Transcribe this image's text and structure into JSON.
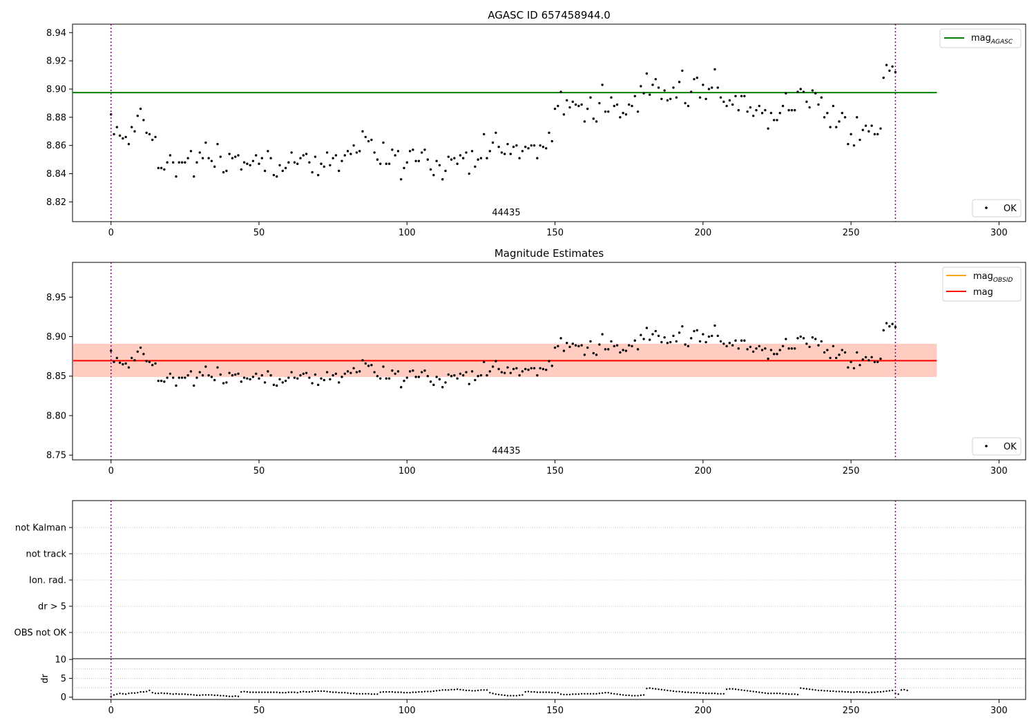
{
  "colors": {
    "agasc_line": "#008000",
    "obsid_line": "#ffa500",
    "mag_line": "#ff0000",
    "band_pink": "#ffc0cb",
    "band_orange": "#ffa07a",
    "obs_marker": "#800080",
    "points": "#000000",
    "grid": "#b0b0b0"
  },
  "chart_data": [
    {
      "type": "scatter",
      "title": "AGASC ID 657458944.0",
      "xlim": [
        -13,
        309
      ],
      "ylim": [
        8.806,
        8.946
      ],
      "xticks": [
        0,
        50,
        100,
        150,
        200,
        250,
        300
      ],
      "yticks": [
        8.82,
        8.84,
        8.86,
        8.88,
        8.9,
        8.92,
        8.94
      ],
      "legend": [
        {
          "label": "mag",
          "sub": "AGASC",
          "kind": "line",
          "position": "top-right"
        },
        {
          "label": "OK",
          "kind": "marker",
          "position": "bottom-right"
        }
      ],
      "reference_line": {
        "name": "mag",
        "sub": "AGASC",
        "y": 8.8975,
        "x": [
          -13,
          279
        ]
      },
      "obs_boundaries": [
        0,
        265
      ],
      "obs_label": {
        "text": "44435",
        "x": 132
      },
      "series": [
        {
          "name": "OK",
          "source": "magnitudes"
        }
      ]
    },
    {
      "type": "scatter",
      "title": "Magnitude Estimates",
      "xlim": [
        -13,
        309
      ],
      "ylim": [
        8.744,
        8.994
      ],
      "xticks": [
        0,
        50,
        100,
        150,
        200,
        250,
        300
      ],
      "yticks": [
        8.75,
        8.8,
        8.85,
        8.9,
        8.95
      ],
      "legend": [
        {
          "label": "mag",
          "sub": "OBSID",
          "kind": "line",
          "position": "top-right"
        },
        {
          "label": "mag",
          "kind": "line",
          "position": "top-right"
        },
        {
          "label": "OK",
          "kind": "marker",
          "position": "bottom-right"
        }
      ],
      "mag": 8.8695,
      "mag_band": [
        8.849,
        8.891
      ],
      "mag_obsid": 8.8695,
      "obsid_band": [
        8.849,
        8.891
      ],
      "band_x": [
        -13,
        279
      ],
      "obs_boundaries": [
        0,
        265
      ],
      "obs_label": {
        "text": "44435",
        "x": 132
      },
      "series": [
        {
          "name": "OK",
          "source": "magnitudes"
        }
      ]
    },
    {
      "type": "scatter",
      "categories": [
        "OBS not OK",
        "dr > 5",
        "Ion. rad.",
        "not track",
        "not Kalman"
      ],
      "xlim": [
        -13,
        309
      ],
      "flags": [],
      "obs_boundaries": [
        0,
        265
      ]
    },
    {
      "type": "scatter",
      "ylabel": "dr",
      "xlim": [
        -13,
        309
      ],
      "ylim": [
        -0.6,
        10.2
      ],
      "xticks": [
        0,
        50,
        100,
        150,
        200,
        250,
        300
      ],
      "yticks": [
        0,
        5,
        10
      ],
      "obs_boundaries": [
        0,
        265
      ],
      "series": [
        {
          "name": "dr",
          "values": [
            0.2,
            0.6,
            0.8,
            1.0,
            0.9,
            0.8,
            1.0,
            1.1,
            1.1,
            1.2,
            1.4,
            1.4,
            1.5,
            1.8,
            1.2,
            1.0,
            1.0,
            1.1,
            1.0,
            1.0,
            0.9,
            0.8,
            0.9,
            0.8,
            0.8,
            0.8,
            0.7,
            0.7,
            0.6,
            0.5,
            0.5,
            0.6,
            0.6,
            0.6,
            0.6,
            0.5,
            0.5,
            0.4,
            0.4,
            0.3,
            0.2,
            0.2,
            0.3,
            0.2,
            1.4,
            1.5,
            1.4,
            1.3,
            1.3,
            1.3,
            1.3,
            1.3,
            1.3,
            1.3,
            1.3,
            1.3,
            1.3,
            1.2,
            1.2,
            1.2,
            1.3,
            1.3,
            1.3,
            1.2,
            1.4,
            1.5,
            1.4,
            1.4,
            1.5,
            1.6,
            1.6,
            1.6,
            1.6,
            1.5,
            1.4,
            1.3,
            1.3,
            1.2,
            1.2,
            1.2,
            1.1,
            1.0,
            1.0,
            0.9,
            0.9,
            0.9,
            0.9,
            0.9,
            0.8,
            0.8,
            0.8,
            1.3,
            1.4,
            1.4,
            1.4,
            1.4,
            1.3,
            1.3,
            1.3,
            1.2,
            1.2,
            1.2,
            1.3,
            1.3,
            1.4,
            1.4,
            1.5,
            1.5,
            1.5,
            1.6,
            1.7,
            1.8,
            1.9,
            1.9,
            1.9,
            2.0,
            2.0,
            2.1,
            2.0,
            1.9,
            1.8,
            1.8,
            1.7,
            1.7,
            1.8,
            1.9,
            1.9,
            1.9,
            1.2,
            1.0,
            0.8,
            0.7,
            0.6,
            0.5,
            0.4,
            0.4,
            0.4,
            0.4,
            0.5,
            0.6,
            1.4,
            1.5,
            1.4,
            1.4,
            1.3,
            1.3,
            1.3,
            1.3,
            1.3,
            1.2,
            1.2,
            1.2,
            0.8,
            0.7,
            0.7,
            0.7,
            0.8,
            0.8,
            0.8,
            0.9,
            0.9,
            0.9,
            0.9,
            0.9,
            0.9,
            1.0,
            1.1,
            1.2,
            1.2,
            1.0,
            0.9,
            0.8,
            0.7,
            0.6,
            0.5,
            0.5,
            0.4,
            0.4,
            0.4,
            0.5,
            0.6,
            2.3,
            2.4,
            2.3,
            2.2,
            2.1,
            2.0,
            1.9,
            1.8,
            1.7,
            1.6,
            1.5,
            1.5,
            1.4,
            1.3,
            1.3,
            1.2,
            1.2,
            1.2,
            1.1,
            1.1,
            1.0,
            1.0,
            1.0,
            1.0,
            0.9,
            0.9,
            0.9,
            2.1,
            2.2,
            2.2,
            2.1,
            2.0,
            1.9,
            1.8,
            1.7,
            1.6,
            1.5,
            1.4,
            1.3,
            1.2,
            1.1,
            1.0,
            1.0,
            1.0,
            1.0,
            1.0,
            0.9,
            0.9,
            0.8,
            0.8,
            0.8,
            0.7,
            2.4,
            2.3,
            2.2,
            2.1,
            2.0,
            1.9,
            1.8,
            1.8,
            1.7,
            1.7,
            1.6,
            1.6,
            1.5,
            1.5,
            1.5,
            1.4,
            1.4,
            1.3,
            1.3,
            1.4,
            1.4,
            1.3,
            1.3,
            1.2,
            1.3,
            1.3,
            1.4,
            1.4,
            1.5,
            1.6,
            1.7,
            1.8,
            1.0,
            0.8,
            1.9,
            2.0,
            1.8
          ]
        }
      ]
    }
  ],
  "magnitudes": [
    8.882,
    8.868,
    8.873,
    8.867,
    8.865,
    8.866,
    8.861,
    8.873,
    8.87,
    8.881,
    8.886,
    8.878,
    8.869,
    8.868,
    8.864,
    8.866,
    8.844,
    8.844,
    8.843,
    8.848,
    8.853,
    8.848,
    8.838,
    8.848,
    8.848,
    8.848,
    8.851,
    8.856,
    8.838,
    8.848,
    8.855,
    8.851,
    8.862,
    8.851,
    8.849,
    8.845,
    8.861,
    8.852,
    8.841,
    8.842,
    8.854,
    8.851,
    8.852,
    8.853,
    8.843,
    8.848,
    8.847,
    8.846,
    8.849,
    8.853,
    8.847,
    8.851,
    8.842,
    8.856,
    8.851,
    8.839,
    8.838,
    8.846,
    8.842,
    8.844,
    8.848,
    8.855,
    8.848,
    8.847,
    8.851,
    8.853,
    8.854,
    8.848,
    8.841,
    8.852,
    8.839,
    8.847,
    8.845,
    8.855,
    8.846,
    8.851,
    8.853,
    8.842,
    8.849,
    8.853,
    8.856,
    8.854,
    8.86,
    8.855,
    8.856,
    8.87,
    8.866,
    8.863,
    8.864,
    8.855,
    8.85,
    8.847,
    8.862,
    8.847,
    8.847,
    8.857,
    8.853,
    8.856,
    8.836,
    8.844,
    8.848,
    8.856,
    8.857,
    8.849,
    8.849,
    8.855,
    8.857,
    8.85,
    8.843,
    8.839,
    8.849,
    8.846,
    8.836,
    8.842,
    8.852,
    8.85,
    8.851,
    8.847,
    8.853,
    8.851,
    8.855,
    8.84,
    8.856,
    8.845,
    8.85,
    8.851,
    8.868,
    8.851,
    8.856,
    8.862,
    8.869,
    8.859,
    8.855,
    8.854,
    8.861,
    8.854,
    8.859,
    8.86,
    8.851,
    8.856,
    8.859,
    8.858,
    8.86,
    8.86,
    8.851,
    8.86,
    8.859,
    8.858,
    8.869,
    8.863,
    8.886,
    8.888,
    8.898,
    8.882,
    8.892,
    8.887,
    8.891,
    8.889,
    8.888,
    8.889,
    8.877,
    8.886,
    8.894,
    8.879,
    8.877,
    8.89,
    8.903,
    8.884,
    8.884,
    8.894,
    8.888,
    8.889,
    8.88,
    8.883,
    8.882,
    8.889,
    8.888,
    8.895,
    8.884,
    8.902,
    8.897,
    8.911,
    8.896,
    8.903,
    8.907,
    8.901,
    8.893,
    8.899,
    8.892,
    8.893,
    8.901,
    8.894,
    8.905,
    8.913,
    8.89,
    8.888,
    8.898,
    8.907,
    8.908,
    8.894,
    8.903,
    8.893,
    8.9,
    8.901,
    8.914,
    8.901,
    8.894,
    8.891,
    8.888,
    8.892,
    8.889,
    8.895,
    8.885,
    8.895,
    8.895,
    8.884,
    8.887,
    8.881,
    8.885,
    8.888,
    8.883,
    8.885,
    8.872,
    8.883,
    8.878,
    8.878,
    8.883,
    8.888,
    8.897,
    8.885,
    8.885,
    8.885,
    8.898,
    8.9,
    8.898,
    8.891,
    8.887,
    8.899,
    8.897,
    8.889,
    8.894,
    8.88,
    8.883,
    8.873,
    8.888,
    8.873,
    8.877,
    8.883,
    8.88,
    8.861,
    8.868,
    8.86,
    8.88,
    8.864,
    8.871,
    8.874,
    8.87,
    8.874,
    8.868,
    8.868,
    8.872,
    8.908,
    8.917,
    8.913,
    8.916,
    8.912
  ]
}
